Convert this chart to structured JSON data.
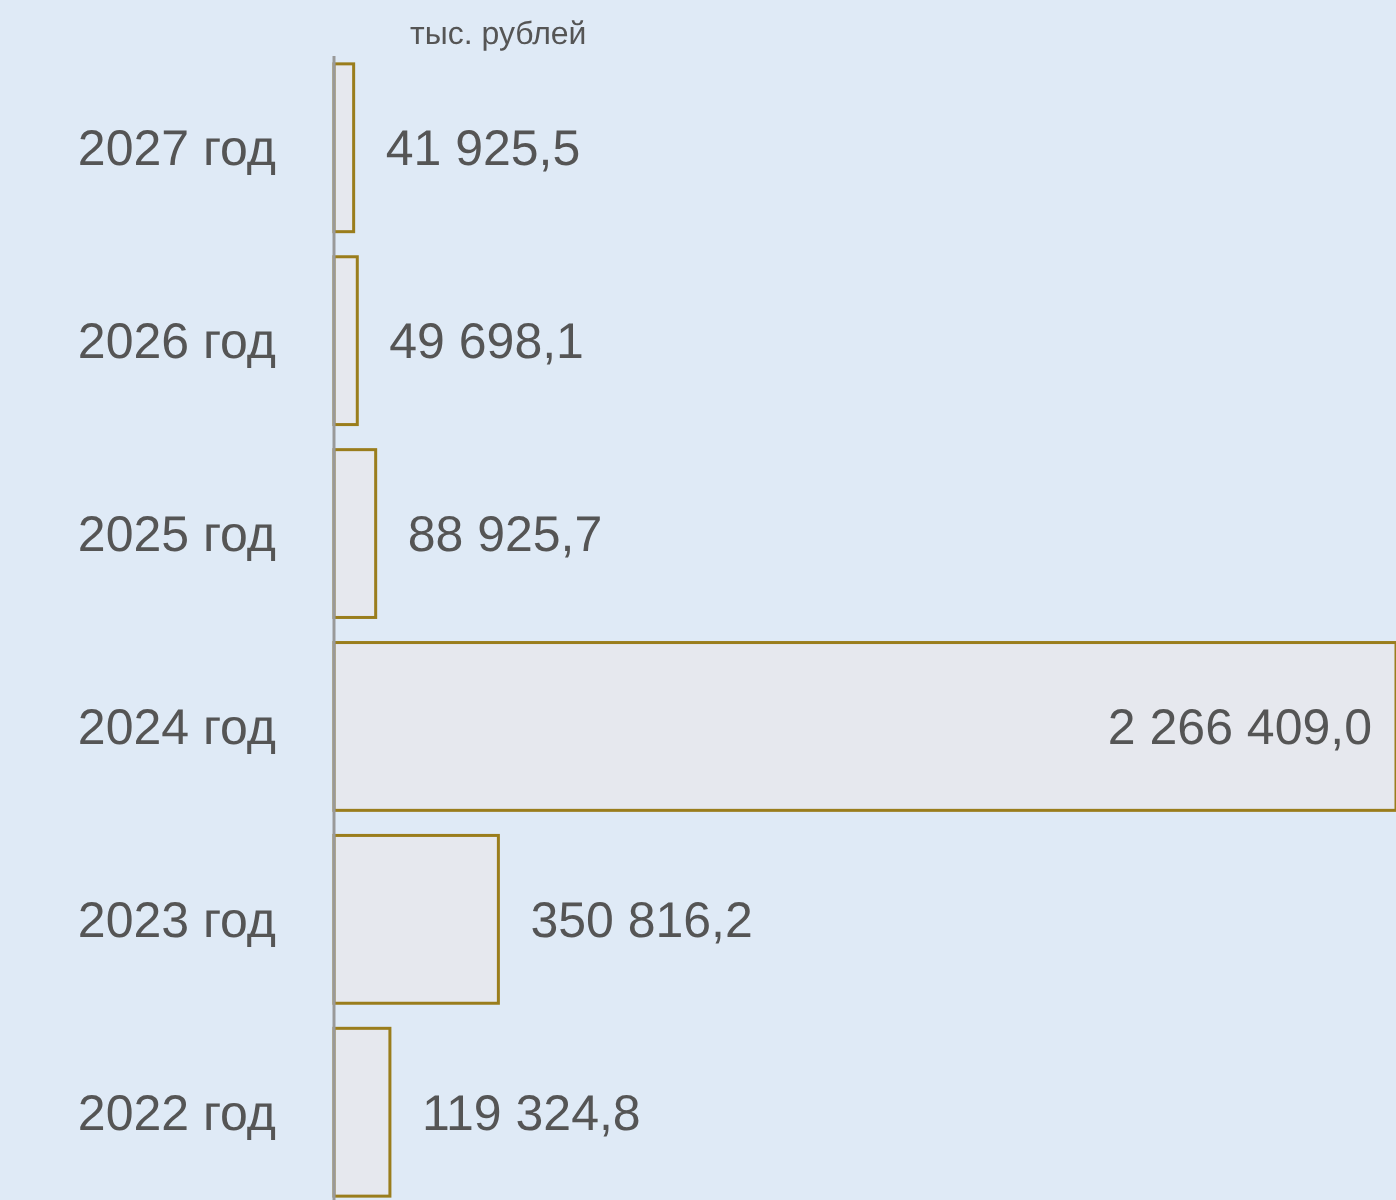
{
  "chart_data": {
    "type": "bar",
    "orientation": "horizontal",
    "xlabel": "тыс. рублей",
    "categories": [
      "2027 год",
      "2026 год",
      "2025 год",
      "2024 год",
      "2023 год",
      "2022 год"
    ],
    "values": [
      41925.5,
      49698.1,
      88925.7,
      2266409.0,
      350816.2,
      119324.8
    ],
    "value_labels": [
      "41 925,5",
      "49 698,1",
      "88 925,7",
      "2 266 409,0",
      "350 816,2",
      "119 324,8"
    ],
    "color": "#e6e8ee"
  }
}
